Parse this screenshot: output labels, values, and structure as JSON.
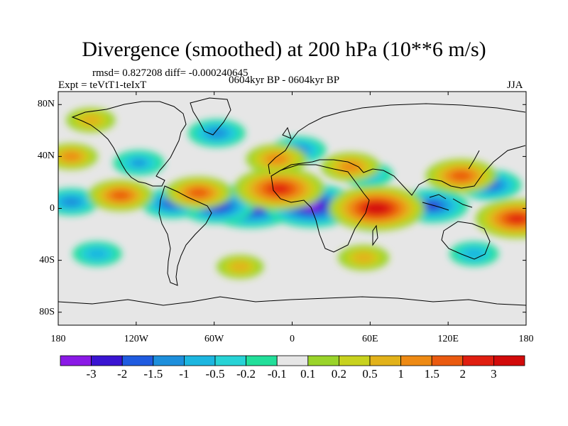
{
  "header": {
    "title": "Divergence (smoothed) at 200 hPa (10**6 m/s)",
    "stats": "rmsd= 0.827208 diff= -0.000240645",
    "experiment": "Expt = teVtT1-teIxT",
    "period": "0604kyr BP - 0604kyr BP",
    "season": "JJA"
  },
  "chart_data": {
    "type": "heatmap",
    "title": "Divergence (smoothed) at 200 hPa (10**6 m/s)",
    "xlabel": "",
    "ylabel": "",
    "xlim": [
      -180,
      180
    ],
    "ylim": [
      -90,
      90
    ],
    "x_ticks": [
      {
        "value": -180,
        "label": "180"
      },
      {
        "value": -120,
        "label": "120W"
      },
      {
        "value": -60,
        "label": "60W"
      },
      {
        "value": 0,
        "label": "0"
      },
      {
        "value": 60,
        "label": "60E"
      },
      {
        "value": 120,
        "label": "120E"
      },
      {
        "value": 180,
        "label": "180"
      }
    ],
    "y_ticks": [
      {
        "value": 80,
        "label": "80N"
      },
      {
        "value": 40,
        "label": "40N"
      },
      {
        "value": 0,
        "label": "0"
      },
      {
        "value": -40,
        "label": "40S"
      },
      {
        "value": -80,
        "label": "80S"
      }
    ],
    "levels": [
      "-3",
      "-2",
      "-1.5",
      "-1",
      "-0.5",
      "-0.2",
      "-0.1",
      "0.1",
      "0.2",
      "0.5",
      "1",
      "1.5",
      "2",
      "3"
    ],
    "colors": [
      "#8a19e6",
      "#3a14d2",
      "#1f5be0",
      "#1d8fdc",
      "#1cb6e0",
      "#27d3d6",
      "#22df9a",
      "#e6e6e6",
      "#9ad42a",
      "#c8d21e",
      "#e2b21a",
      "#ee8a14",
      "#ea5a10",
      "#e01e10",
      "#d20a0a"
    ],
    "features": [
      {
        "lon": -32,
        "lat": 2,
        "value": -3.2
      },
      {
        "lon": 15,
        "lat": 2,
        "value": -3.1
      },
      {
        "lon": -58,
        "lat": 2,
        "value": -2.2
      },
      {
        "lon": -92,
        "lat": 4,
        "value": -1.6
      },
      {
        "lon": 108,
        "lat": 2,
        "value": -2.0
      },
      {
        "lon": 152,
        "lat": 18,
        "value": -1.6
      },
      {
        "lon": -170,
        "lat": 5,
        "value": -1.2
      },
      {
        "lon": -58,
        "lat": 58,
        "value": -1.3
      },
      {
        "lon": 5,
        "lat": 45,
        "value": -1.2
      },
      {
        "lon": 58,
        "lat": 26,
        "value": -1.0
      },
      {
        "lon": -118,
        "lat": 35,
        "value": -1.0
      },
      {
        "lon": 62,
        "lat": -8,
        "value": -1.0
      },
      {
        "lon": 140,
        "lat": -35,
        "value": -0.9
      },
      {
        "lon": -150,
        "lat": -35,
        "value": -0.9
      },
      {
        "lon": -10,
        "lat": 15,
        "value": 3.0
      },
      {
        "lon": 65,
        "lat": 0,
        "value": 3.3
      },
      {
        "lon": 173,
        "lat": -8,
        "value": 2.6
      },
      {
        "lon": 130,
        "lat": 25,
        "value": 2.0
      },
      {
        "lon": -72,
        "lat": 12,
        "value": 1.8
      },
      {
        "lon": -132,
        "lat": 10,
        "value": 1.7
      },
      {
        "lon": -12,
        "lat": 38,
        "value": 1.5
      },
      {
        "lon": 45,
        "lat": 32,
        "value": 1.4
      },
      {
        "lon": -170,
        "lat": 40,
        "value": 1.1
      },
      {
        "lon": 55,
        "lat": -38,
        "value": 1.0
      },
      {
        "lon": -40,
        "lat": -45,
        "value": 0.8
      },
      {
        "lon": -155,
        "lat": 68,
        "value": 0.9
      }
    ]
  }
}
